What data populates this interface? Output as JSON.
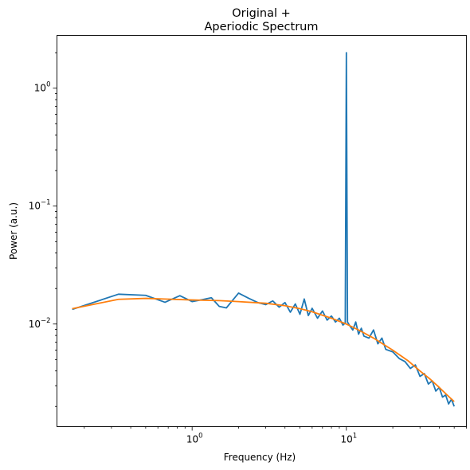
{
  "chart_data": {
    "type": "line",
    "title_lines": [
      "Original +",
      "Aperiodic Spectrum"
    ],
    "xlabel": "Frequency (Hz)",
    "ylabel": "Power (a.u.)",
    "xscale": "log",
    "yscale": "log",
    "xlim": [
      0.133,
      60
    ],
    "ylim": [
      0.00135,
      2.8
    ],
    "x_major_ticks": [
      {
        "value": 1,
        "label": "10",
        "exp": "0"
      },
      {
        "value": 10,
        "label": "10",
        "exp": "1"
      }
    ],
    "y_major_ticks": [
      {
        "value": 0.01,
        "label": "10",
        "exp": "−2"
      },
      {
        "value": 0.1,
        "label": "10",
        "exp": "−1"
      },
      {
        "value": 1,
        "label": "10",
        "exp": "0"
      }
    ],
    "grid": false,
    "legend": "none",
    "series": [
      {
        "color": "#1f77b4",
        "x": [
          0.167,
          0.333,
          0.5,
          0.667,
          0.833,
          1.0,
          1.167,
          1.333,
          1.5,
          1.667,
          2.0,
          2.333,
          2.667,
          3.0,
          3.333,
          3.667,
          4.0,
          4.333,
          4.667,
          5.0,
          5.333,
          5.667,
          6.0,
          6.5,
          7.0,
          7.5,
          8.0,
          8.5,
          9.0,
          9.5,
          9.833,
          10.0,
          10.167,
          10.5,
          11.0,
          11.5,
          12.0,
          12.5,
          13.0,
          14.0,
          15.0,
          16.0,
          17.0,
          18.0,
          20.0,
          22.0,
          24.0,
          26.0,
          28.0,
          30.0,
          32.0,
          34.0,
          36.0,
          38.0,
          40.0,
          42.0,
          44.0,
          46.0,
          48.0,
          50.0
        ],
        "y": [
          0.0133,
          0.0179,
          0.0175,
          0.0153,
          0.0174,
          0.0155,
          0.0161,
          0.0167,
          0.0141,
          0.0137,
          0.0183,
          0.0165,
          0.0152,
          0.0146,
          0.0157,
          0.0139,
          0.0152,
          0.0126,
          0.0148,
          0.0121,
          0.0163,
          0.0118,
          0.0136,
          0.0112,
          0.0129,
          0.0108,
          0.0117,
          0.0104,
          0.0112,
          0.0098,
          0.0102,
          2.0,
          0.0104,
          0.0097,
          0.0089,
          0.0104,
          0.0082,
          0.0092,
          0.0079,
          0.0076,
          0.0089,
          0.0068,
          0.0076,
          0.0061,
          0.0058,
          0.0051,
          0.0048,
          0.0042,
          0.0045,
          0.0036,
          0.0038,
          0.0031,
          0.0033,
          0.0027,
          0.0029,
          0.0024,
          0.0025,
          0.0021,
          0.0023,
          0.002
        ]
      },
      {
        "color": "#ff7f0e",
        "x": [
          0.167,
          0.333,
          0.5,
          0.667,
          1.0,
          1.5,
          2.0,
          3.0,
          4.0,
          5.0,
          6.0,
          8.0,
          10.0,
          12.0,
          15.0,
          20.0,
          25.0,
          30.0,
          35.0,
          40.0,
          45.0,
          50.0
        ],
        "y": [
          0.0135,
          0.0162,
          0.0165,
          0.0163,
          0.016,
          0.0158,
          0.0155,
          0.015,
          0.0143,
          0.0135,
          0.0127,
          0.0112,
          0.01,
          0.0089,
          0.0076,
          0.006,
          0.0049,
          0.004,
          0.0034,
          0.0029,
          0.0025,
          0.0022
        ]
      }
    ]
  }
}
